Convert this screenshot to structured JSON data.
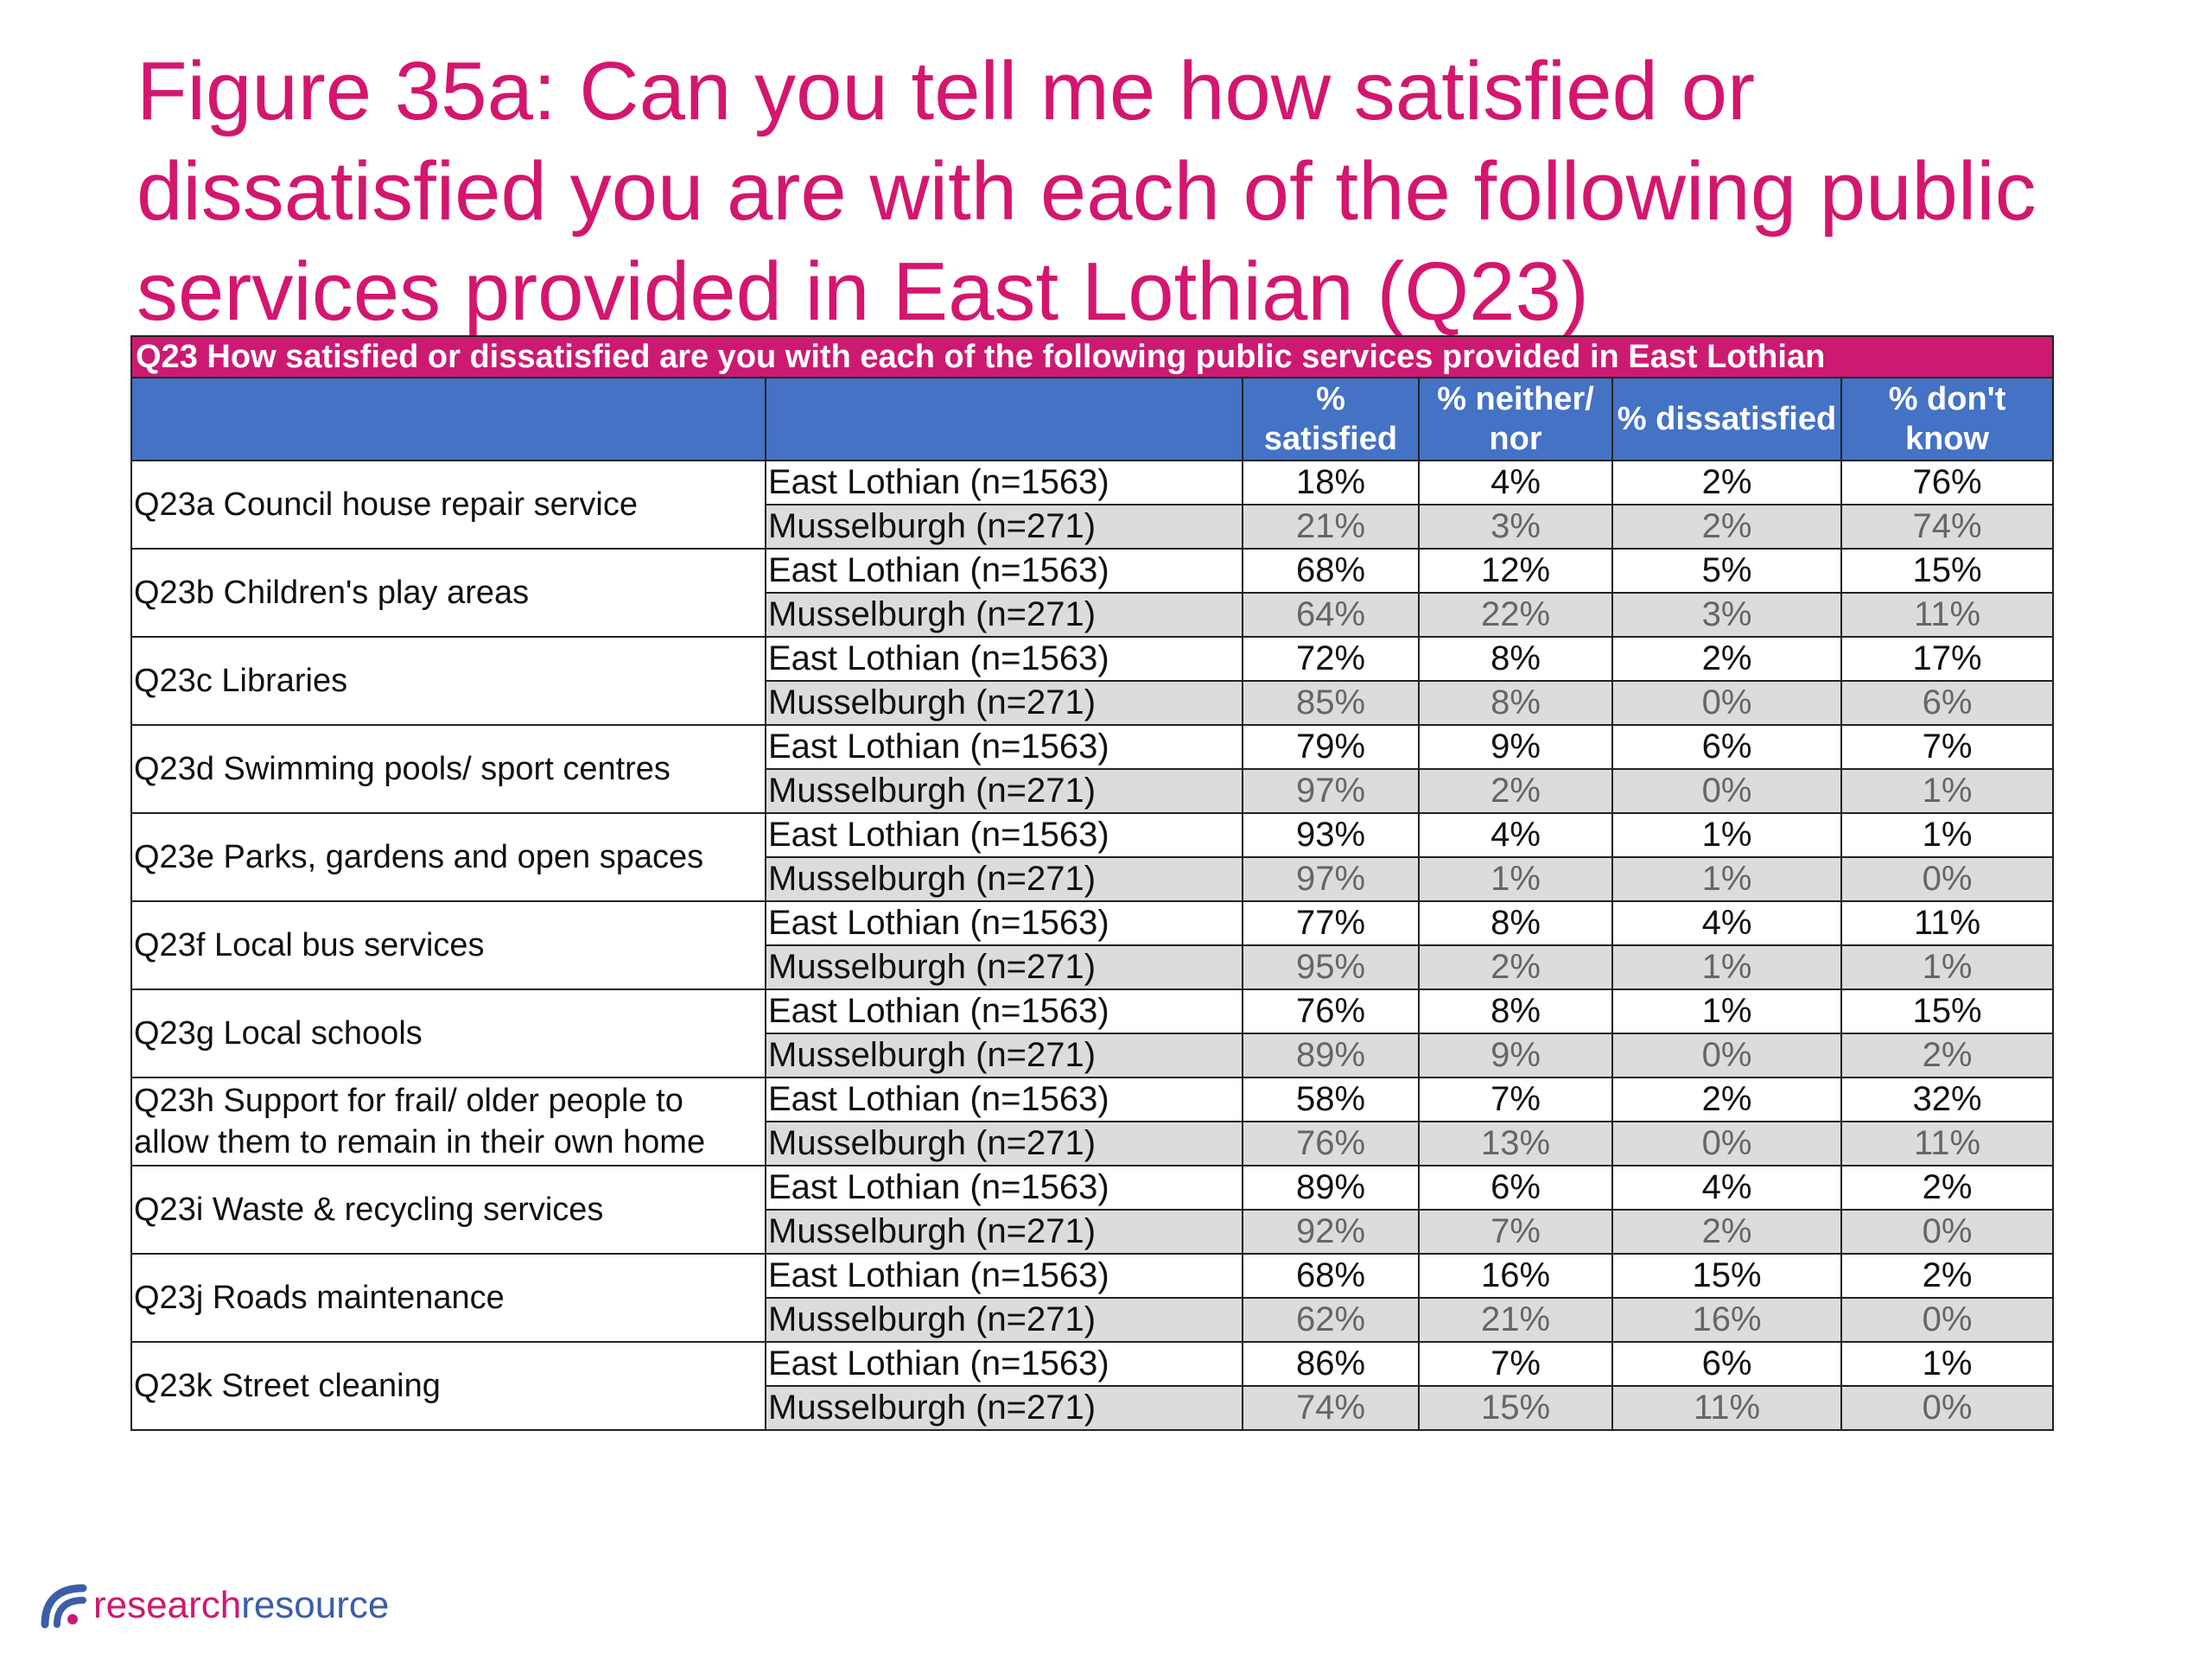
{
  "title": "Figure 35a: Can you tell me how satisfied or dissatisfied you are with each of the following public services provided in East Lothian (Q23)",
  "table": {
    "caption": "Q23 How satisfied or dissatisfied are you with each of the following public services provided in East Lothian",
    "headers": {
      "blank1": "",
      "blank2": "",
      "satisfied_line1": "%",
      "satisfied_line2": "satisfied",
      "neither_line1": "% neither/",
      "neither_line2": "nor",
      "dissatisfied": "% dissatisfied",
      "dontknow_line1": "% don't",
      "dontknow_line2": "know"
    },
    "groups": [
      {
        "question": "Q23a Council house repair service",
        "rows": [
          {
            "area": "East Lothian (n=1563)",
            "satisfied": "18%",
            "neither": "4%",
            "dissatisfied": "2%",
            "dontknow": "76%"
          },
          {
            "area": "Musselburgh (n=271)",
            "satisfied": "21%",
            "neither": "3%",
            "dissatisfied": "2%",
            "dontknow": "74%"
          }
        ]
      },
      {
        "question": "Q23b Children's play areas",
        "rows": [
          {
            "area": "East Lothian (n=1563)",
            "satisfied": "68%",
            "neither": "12%",
            "dissatisfied": "5%",
            "dontknow": "15%"
          },
          {
            "area": "Musselburgh (n=271)",
            "satisfied": "64%",
            "neither": "22%",
            "dissatisfied": "3%",
            "dontknow": "11%"
          }
        ]
      },
      {
        "question": "Q23c Libraries",
        "rows": [
          {
            "area": "East Lothian (n=1563)",
            "satisfied": "72%",
            "neither": "8%",
            "dissatisfied": "2%",
            "dontknow": "17%"
          },
          {
            "area": "Musselburgh (n=271)",
            "satisfied": "85%",
            "neither": "8%",
            "dissatisfied": "0%",
            "dontknow": "6%"
          }
        ]
      },
      {
        "question": "Q23d Swimming pools/ sport centres",
        "rows": [
          {
            "area": "East Lothian (n=1563)",
            "satisfied": "79%",
            "neither": "9%",
            "dissatisfied": "6%",
            "dontknow": "7%"
          },
          {
            "area": "Musselburgh (n=271)",
            "satisfied": "97%",
            "neither": "2%",
            "dissatisfied": "0%",
            "dontknow": "1%"
          }
        ]
      },
      {
        "question": "Q23e Parks, gardens and open spaces",
        "rows": [
          {
            "area": "East Lothian (n=1563)",
            "satisfied": "93%",
            "neither": "4%",
            "dissatisfied": "1%",
            "dontknow": "1%"
          },
          {
            "area": "Musselburgh (n=271)",
            "satisfied": "97%",
            "neither": "1%",
            "dissatisfied": "1%",
            "dontknow": "0%"
          }
        ]
      },
      {
        "question": "Q23f Local bus services",
        "rows": [
          {
            "area": "East Lothian (n=1563)",
            "satisfied": "77%",
            "neither": "8%",
            "dissatisfied": "4%",
            "dontknow": "11%"
          },
          {
            "area": "Musselburgh (n=271)",
            "satisfied": "95%",
            "neither": "2%",
            "dissatisfied": "1%",
            "dontknow": "1%"
          }
        ]
      },
      {
        "question": "Q23g Local schools",
        "rows": [
          {
            "area": "East Lothian (n=1563)",
            "satisfied": "76%",
            "neither": "8%",
            "dissatisfied": "1%",
            "dontknow": "15%"
          },
          {
            "area": "Musselburgh (n=271)",
            "satisfied": "89%",
            "neither": "9%",
            "dissatisfied": "0%",
            "dontknow": "2%"
          }
        ]
      },
      {
        "question": "Q23h Support for frail/ older people to allow them to remain in their own home",
        "rows": [
          {
            "area": "East Lothian (n=1563)",
            "satisfied": "58%",
            "neither": "7%",
            "dissatisfied": "2%",
            "dontknow": "32%"
          },
          {
            "area": "Musselburgh (n=271)",
            "satisfied": "76%",
            "neither": "13%",
            "dissatisfied": "0%",
            "dontknow": "11%"
          }
        ]
      },
      {
        "question": "Q23i Waste & recycling services",
        "rows": [
          {
            "area": "East Lothian (n=1563)",
            "satisfied": "89%",
            "neither": "6%",
            "dissatisfied": "4%",
            "dontknow": "2%"
          },
          {
            "area": "Musselburgh (n=271)",
            "satisfied": "92%",
            "neither": "7%",
            "dissatisfied": "2%",
            "dontknow": "0%"
          }
        ]
      },
      {
        "question": "Q23j Roads maintenance",
        "rows": [
          {
            "area": "East Lothian (n=1563)",
            "satisfied": "68%",
            "neither": "16%",
            "dissatisfied": "15%",
            "dontknow": "2%"
          },
          {
            "area": "Musselburgh (n=271)",
            "satisfied": "62%",
            "neither": "21%",
            "dissatisfied": "16%",
            "dontknow": "0%"
          }
        ]
      },
      {
        "question": "Q23k Street cleaning",
        "rows": [
          {
            "area": "East Lothian (n=1563)",
            "satisfied": "86%",
            "neither": "7%",
            "dissatisfied": "6%",
            "dontknow": "1%"
          },
          {
            "area": "Musselburgh (n=271)",
            "satisfied": "74%",
            "neither": "15%",
            "dissatisfied": "11%",
            "dontknow": "0%"
          }
        ]
      }
    ]
  },
  "logo": {
    "word1": "research",
    "word2": "resource",
    "icon": "research-resource-arc-icon",
    "colors": {
      "pink": "#cc1a72",
      "blue": "#3b5ea6"
    }
  },
  "colors": {
    "title": "#d4166e",
    "caption_bg": "#cc1a72",
    "header_bg": "#4472c4",
    "alt_row_bg": "#dcdcdc"
  }
}
